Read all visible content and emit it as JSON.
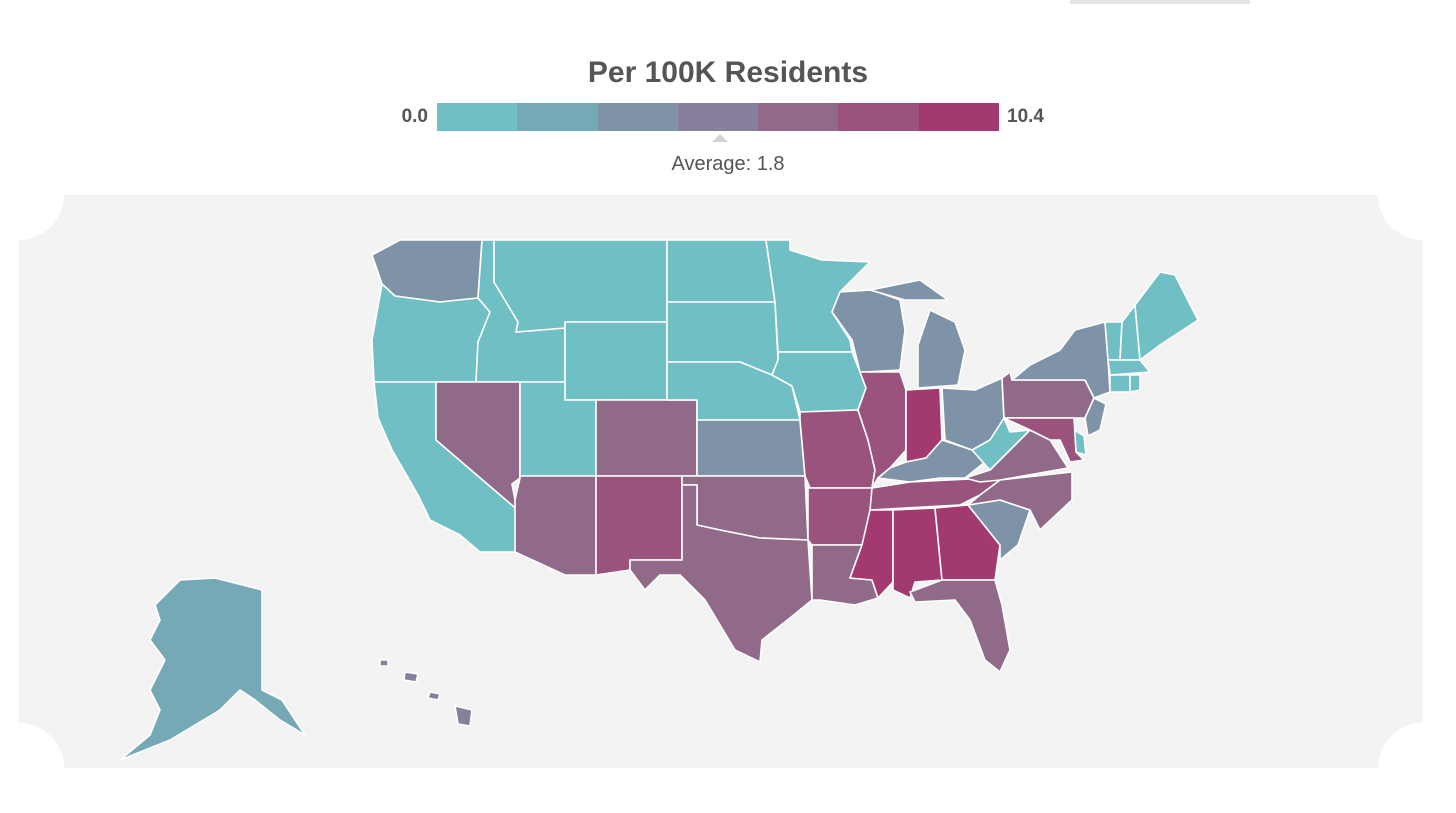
{
  "legend": {
    "title": "Per 100K Residents",
    "min_label": "0.0",
    "max_label": "10.4",
    "average_label": "Average: 1.8",
    "scale_colors": [
      "#6fbfc4",
      "#75a9b5",
      "#7e93a8",
      "#887f9c",
      "#916a8a",
      "#9a537d",
      "#a33a6f"
    ]
  },
  "colors": {
    "c0": "#6fbfc4",
    "c1": "#75a9b5",
    "c2": "#7e93a8",
    "c3": "#887f9c",
    "c4": "#916a8a",
    "c5": "#9a537d",
    "c6": "#a33a6f",
    "panel_background": "#f3f3f3"
  },
  "states": {
    "WA": "c2",
    "OR": "c0",
    "CA": "c0",
    "ID": "c0",
    "NV": "c4",
    "MT": "c0",
    "WY": "c0",
    "UT": "c0",
    "AZ": "c4",
    "CO": "c4",
    "NM": "c5",
    "ND": "c0",
    "SD": "c0",
    "NE": "c0",
    "KS": "c2",
    "OK": "c4",
    "TX": "c4",
    "MN": "c0",
    "IA": "c0",
    "MO": "c5",
    "AR": "c5",
    "LA": "c4",
    "WI": "c2",
    "IL": "c5",
    "MI": "c2",
    "IN": "c6",
    "OH": "c2",
    "KY": "c2",
    "TN": "c5",
    "MS": "c6",
    "AL": "c6",
    "GA": "c6",
    "FL": "c4",
    "SC": "c2",
    "NC": "c4",
    "VA": "c4",
    "WV": "c0",
    "PA": "c4",
    "NY": "c2",
    "VT": "c0",
    "NH": "c0",
    "ME": "c0",
    "MA": "c0",
    "CT": "c0",
    "RI": "c0",
    "NJ": "c2",
    "DE": "c0",
    "MD": "c5",
    "AK": "c1",
    "HI": "c3"
  }
}
